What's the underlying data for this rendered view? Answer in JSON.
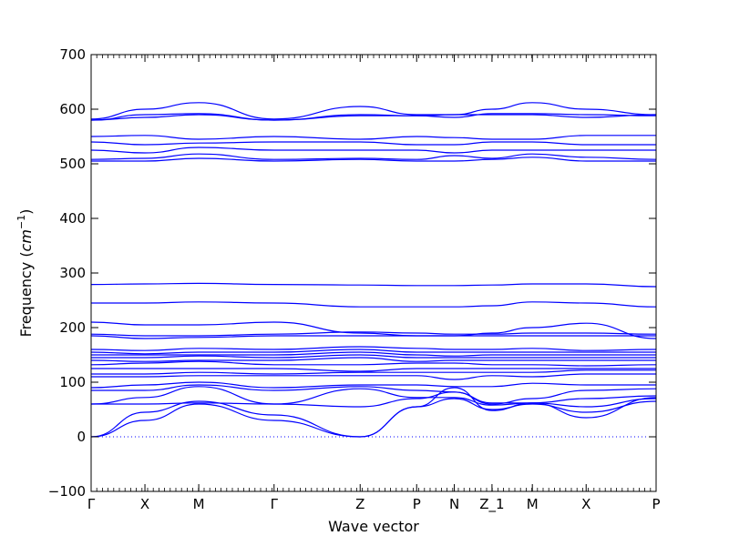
{
  "chart_data": {
    "type": "line",
    "title": "",
    "xlabel": "Wave vector",
    "ylabel": "Frequency (cm⁻¹)",
    "ylabel_base": "Frequency (",
    "ylabel_unit": "cm",
    "ylabel_exp": "−1",
    "ylabel_close": ")",
    "ylim": [
      -100,
      700
    ],
    "yticks": [
      -100,
      0,
      100,
      200,
      300,
      400,
      500,
      600,
      700
    ],
    "grid": false,
    "line_color": "#0000ff",
    "zero_line_color": "#0000ff",
    "x_ticks": [
      {
        "label": "Γ",
        "x": 0.0
      },
      {
        "label": "X",
        "x": 1.0
      },
      {
        "label": "M",
        "x": 2.0
      },
      {
        "label": "Γ",
        "x": 3.4
      },
      {
        "label": "Z",
        "x": 5.0
      },
      {
        "label": "P",
        "x": 6.05
      },
      {
        "label": "N",
        "x": 6.75
      },
      {
        "label": "Z_1",
        "x": 7.45
      },
      {
        "label": "M",
        "x": 8.2
      },
      {
        "label": "X",
        "x": 9.2
      },
      {
        "label": "P",
        "x": 10.5
      }
    ],
    "xlim": [
      0,
      10.5
    ],
    "series": [
      {
        "values": [
          0,
          30,
          60,
          30,
          0,
          55,
          70,
          50,
          60,
          45,
          65
        ]
      },
      {
        "values": [
          0,
          45,
          65,
          40,
          0,
          55,
          90,
          48,
          62,
          55,
          70
        ]
      },
      {
        "values": [
          60,
          60,
          62,
          60,
          55,
          70,
          82,
          62,
          62,
          35,
          72
        ]
      },
      {
        "values": [
          60,
          72,
          92,
          60,
          88,
          72,
          72,
          58,
          62,
          70,
          75
        ]
      },
      {
        "values": [
          85,
          85,
          95,
          85,
          92,
          85,
          82,
          60,
          70,
          85,
          88
        ]
      },
      {
        "values": [
          90,
          95,
          100,
          90,
          95,
          95,
          92,
          92,
          98,
          95,
          95
        ]
      },
      {
        "values": [
          110,
          110,
          112,
          112,
          112,
          112,
          105,
          112,
          110,
          115,
          115
        ]
      },
      {
        "values": [
          115,
          115,
          118,
          115,
          118,
          118,
          118,
          118,
          118,
          122,
          122
        ]
      },
      {
        "values": [
          125,
          125,
          125,
          125,
          120,
          125,
          125,
          125,
          125,
          125,
          125
        ]
      },
      {
        "values": [
          132,
          135,
          138,
          132,
          132,
          135,
          135,
          132,
          132,
          130,
          132
        ]
      },
      {
        "values": [
          140,
          138,
          140,
          140,
          145,
          138,
          140,
          140,
          140,
          140,
          140
        ]
      },
      {
        "values": [
          145,
          145,
          148,
          145,
          150,
          145,
          145,
          145,
          145,
          145,
          145
        ]
      },
      {
        "values": [
          150,
          150,
          150,
          150,
          155,
          150,
          148,
          150,
          150,
          150,
          150
        ]
      },
      {
        "values": [
          155,
          152,
          155,
          155,
          160,
          155,
          155,
          155,
          155,
          155,
          155
        ]
      },
      {
        "values": [
          160,
          158,
          162,
          160,
          165,
          162,
          160,
          160,
          162,
          158,
          160
        ]
      },
      {
        "values": [
          185,
          180,
          182,
          185,
          185,
          185,
          185,
          185,
          185,
          185,
          185
        ]
      },
      {
        "values": [
          188,
          185,
          185,
          188,
          192,
          190,
          188,
          188,
          190,
          190,
          188
        ]
      },
      {
        "values": [
          210,
          205,
          205,
          210,
          190,
          185,
          185,
          190,
          200,
          208,
          180
        ]
      },
      {
        "values": [
          245,
          245,
          247,
          245,
          238,
          238,
          238,
          240,
          247,
          245,
          238
        ]
      },
      {
        "values": [
          279,
          280,
          281,
          279,
          278,
          277,
          277,
          278,
          280,
          280,
          275
        ]
      },
      {
        "values": [
          505,
          505,
          510,
          505,
          508,
          505,
          505,
          508,
          512,
          505,
          505
        ]
      },
      {
        "values": [
          508,
          510,
          518,
          508,
          510,
          508,
          515,
          510,
          518,
          512,
          508
        ]
      },
      {
        "values": [
          525,
          520,
          530,
          525,
          525,
          525,
          520,
          525,
          525,
          525,
          525
        ]
      },
      {
        "values": [
          540,
          535,
          538,
          540,
          540,
          535,
          535,
          540,
          540,
          535,
          535
        ]
      },
      {
        "values": [
          550,
          552,
          545,
          550,
          545,
          550,
          548,
          545,
          545,
          552,
          552
        ]
      },
      {
        "values": [
          580,
          585,
          590,
          580,
          588,
          588,
          590,
          590,
          590,
          585,
          590
        ]
      },
      {
        "values": [
          580,
          590,
          592,
          580,
          590,
          588,
          585,
          592,
          592,
          590,
          588
        ]
      },
      {
        "values": [
          582,
          600,
          612,
          582,
          605,
          590,
          590,
          600,
          612,
          600,
          590
        ]
      }
    ]
  }
}
